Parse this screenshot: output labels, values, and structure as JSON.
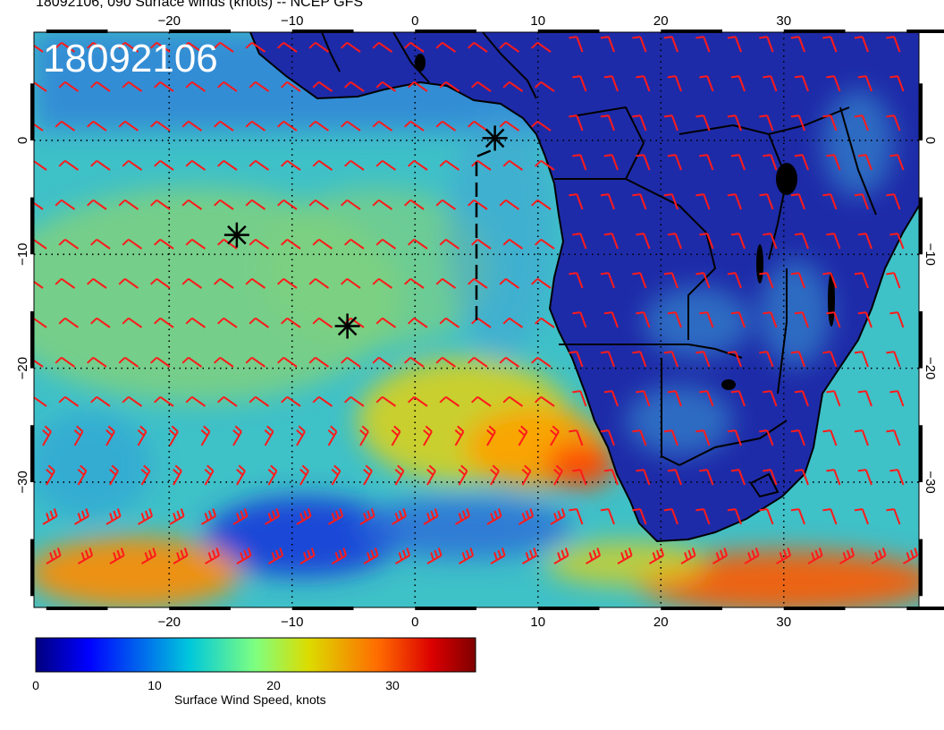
{
  "header": {
    "title": "18092106, 090 Surface winds (knots) -- NCEP GFS",
    "stamp": "18092106"
  },
  "map": {
    "projection": "lon-lat",
    "lon_range": [
      -31,
      41
    ],
    "lat_range": [
      -41,
      9.5
    ],
    "lon_ticks": [
      "−20",
      "−10",
      "0",
      "10",
      "20",
      "30"
    ],
    "lat_ticks": [
      "0",
      "−10",
      "−20",
      "−30"
    ],
    "grid": true,
    "land_color": "#1e2ba8",
    "ocean_base_color": "#3fc1c8",
    "barb_color": "#ff1a1a",
    "storm_markers": [
      {
        "lon": 6.5,
        "lat": 0.2
      },
      {
        "lon": -14.5,
        "lat": -8.3
      },
      {
        "lon": -5.5,
        "lat": -16.3
      }
    ]
  },
  "colorbar": {
    "label": "Surface Wind Speed, knots",
    "ticks": [
      "0",
      "10",
      "20",
      "30"
    ],
    "range": [
      0,
      37
    ]
  }
}
